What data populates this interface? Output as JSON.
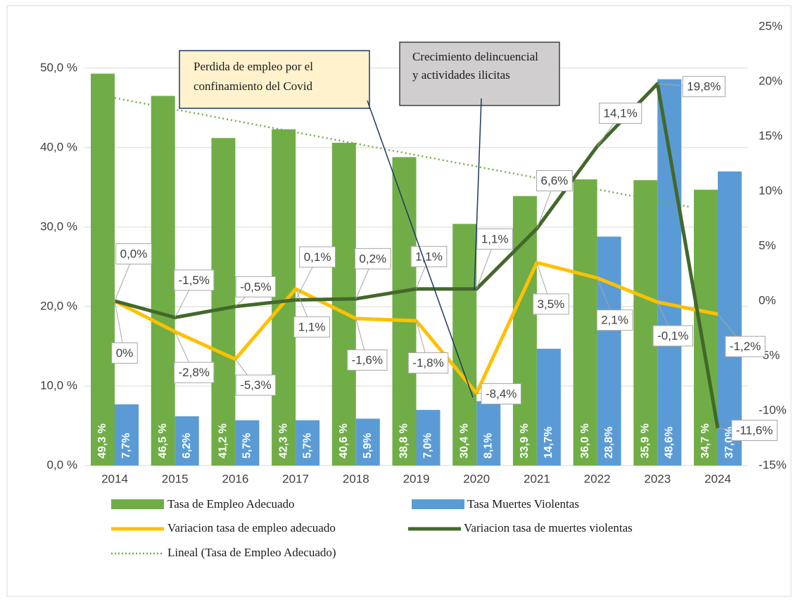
{
  "chart_data": {
    "type": "bar-line",
    "categories": [
      "2014",
      "2015",
      "2016",
      "2017",
      "2018",
      "2019",
      "2020",
      "2021",
      "2022",
      "2023",
      "2024"
    ],
    "series": [
      {
        "name": "Tasa de Empleo Adecuado",
        "type": "bar",
        "color": "#70ad47",
        "values": [
          49.3,
          46.5,
          41.2,
          42.3,
          40.6,
          38.8,
          30.4,
          33.9,
          36.0,
          35.9,
          34.7
        ],
        "value_labels": [
          "49,3 %",
          "46,5 %",
          "41,2 %",
          "42,3 %",
          "40,6 %",
          "38,8 %",
          "30,4 %",
          "33,9 %",
          "36,0 %",
          "35,9 %",
          "34,7 %"
        ]
      },
      {
        "name": "Tasa Muertes Violentas",
        "type": "bar",
        "color": "#5b9bd5",
        "values": [
          7.7,
          6.2,
          5.7,
          5.7,
          5.9,
          7.0,
          8.1,
          14.7,
          28.8,
          48.6,
          37.0
        ],
        "value_labels": [
          "7,7%",
          "6,2%",
          "5,7%",
          "5,7%",
          "5,9%",
          "7,0%",
          "8,1%",
          "14,7%",
          "28,8%",
          "48,6%",
          "37,0%"
        ]
      },
      {
        "name": "Variacion tasa de empleo adecuado",
        "type": "line",
        "axis": "y2",
        "color": "#ffc000",
        "values": [
          0,
          -2.8,
          -5.3,
          1.1,
          -1.6,
          -1.8,
          -8.4,
          3.5,
          2.1,
          -0.1,
          -1.2
        ],
        "value_labels": [
          "0%",
          "-2,8%",
          "-5,3%",
          "1,1%",
          "-1,6%",
          "-1,8%",
          "-8,4%",
          "3,5%",
          "2,1%",
          "-0,1%",
          "-1,2%"
        ]
      },
      {
        "name": "Variacion tasa de muertes violentas",
        "type": "line",
        "axis": "y2",
        "color": "#43682b",
        "values": [
          0.0,
          -1.5,
          -0.5,
          0.1,
          0.2,
          1.1,
          1.1,
          6.6,
          14.1,
          19.8,
          -11.6
        ],
        "value_labels": [
          "0,0%",
          "-1,5%",
          "-0,5%",
          "0,1%",
          "0,2%",
          "1,1%",
          "1,1%",
          "6,6%",
          "14,1%",
          "19,8%",
          "-11,6%"
        ]
      }
    ],
    "trendline": {
      "name": "Lineal (Tasa de Empleo Adecuado)",
      "of": "Tasa de Empleo Adecuado",
      "color": "#70ad47"
    },
    "annotations": [
      {
        "text": [
          "Perdida de empleo por el",
          "confinamiento del Covid"
        ]
      },
      {
        "text": [
          "Crecimiento delincuencial",
          "y actividades ilicitas"
        ]
      }
    ],
    "ylim": [
      0,
      55.2
    ],
    "yticks": [
      {
        "value": 0,
        "label": "0,0 %"
      },
      {
        "value": 10,
        "label": "10,0 %"
      },
      {
        "value": 20,
        "label": "20,0 %"
      },
      {
        "value": 30,
        "label": "30,0 %"
      },
      {
        "value": 40,
        "label": "40,0 %"
      },
      {
        "value": 50,
        "label": "50,0 %"
      }
    ],
    "y2lim": [
      -15,
      25
    ],
    "y2ticks": [
      {
        "value": -15,
        "label": "-15%"
      },
      {
        "value": -10,
        "label": "-10%"
      },
      {
        "value": -5,
        "label": "-5%"
      },
      {
        "value": 0,
        "label": "0%"
      },
      {
        "value": 5,
        "label": "5%"
      },
      {
        "value": 10,
        "label": "10%"
      },
      {
        "value": 15,
        "label": "15%"
      },
      {
        "value": 20,
        "label": "20%"
      },
      {
        "value": 25,
        "label": "25%"
      }
    ],
    "grid": true
  }
}
